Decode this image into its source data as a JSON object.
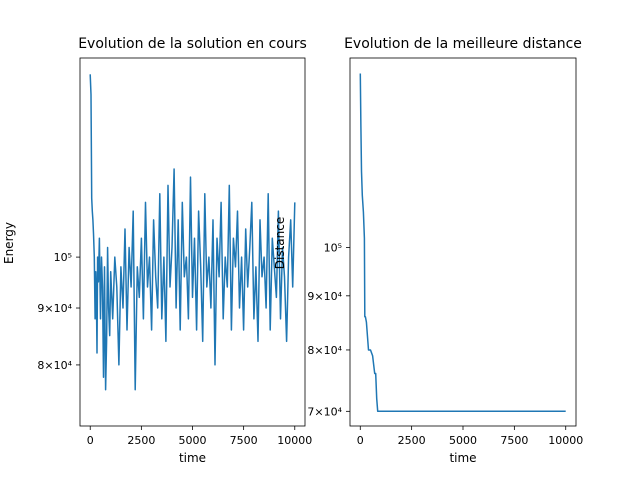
{
  "chart_data": [
    {
      "type": "line",
      "title": "Evolution de la solution en cours",
      "xlabel": "time",
      "ylabel": "Energy",
      "xlim": [
        -500,
        10500
      ],
      "ylim": [
        70500,
        151000
      ],
      "yscale": "log",
      "xticks": [
        0,
        2500,
        5000,
        7500,
        10000
      ],
      "xtick_labels": [
        "0",
        "2500",
        "5000",
        "7500",
        "10000"
      ],
      "yticks": [
        80000,
        90000,
        100000
      ],
      "ytick_labels": [
        "8×10⁴",
        "9×10⁴",
        "10⁵"
      ],
      "color": "#1f77b4",
      "series": [
        {
          "x": [
            0,
            40,
            70,
            100,
            130,
            160,
            200,
            240,
            270,
            300,
            330,
            360,
            400,
            450,
            500,
            550,
            600,
            650,
            700,
            750,
            800,
            850,
            900,
            950,
            1000,
            1100,
            1200,
            1300,
            1400,
            1500,
            1600,
            1700,
            1800,
            1900,
            2000,
            2100,
            2200,
            2300,
            2400,
            2500,
            2600,
            2700,
            2800,
            2900,
            3000,
            3100,
            3200,
            3300,
            3400,
            3500,
            3600,
            3700,
            3800,
            3900,
            4000,
            4100,
            4200,
            4300,
            4400,
            4500,
            4600,
            4700,
            4800,
            4900,
            5000,
            5100,
            5200,
            5300,
            5400,
            5500,
            5600,
            5700,
            5800,
            5900,
            6000,
            6100,
            6200,
            6300,
            6400,
            6500,
            6600,
            6700,
            6800,
            6900,
            7000,
            7100,
            7200,
            7300,
            7400,
            7500,
            7600,
            7700,
            7800,
            7900,
            8000,
            8100,
            8200,
            8300,
            8400,
            8500,
            8600,
            8700,
            8800,
            8900,
            9000,
            9100,
            9200,
            9300,
            9400,
            9500,
            9600,
            9700,
            9800,
            9900,
            10000
          ],
          "values": [
            146000,
            140000,
            113000,
            110000,
            108000,
            105000,
            100000,
            88000,
            97000,
            92000,
            82000,
            100000,
            95000,
            104000,
            88000,
            100000,
            94000,
            78000,
            98000,
            76000,
            84000,
            102000,
            90000,
            85000,
            97000,
            88000,
            100000,
            94000,
            80000,
            98000,
            90000,
            106000,
            86000,
            102000,
            94000,
            110000,
            76000,
            98000,
            92000,
            104000,
            88000,
            112000,
            94000,
            100000,
            86000,
            108000,
            96000,
            90000,
            114000,
            88000,
            100000,
            84000,
            116000,
            94000,
            102000,
            120000,
            90000,
            108000,
            86000,
            112000,
            96000,
            100000,
            88000,
            118000,
            92000,
            104000,
            86000,
            110000,
            98000,
            84000,
            114000,
            94000,
            100000,
            90000,
            108000,
            80000,
            104000,
            96000,
            112000,
            88000,
            100000,
            94000,
            116000,
            86000,
            104000,
            98000,
            110000,
            90000,
            100000,
            86000,
            106000,
            94000,
            102000,
            112000,
            88000,
            98000,
            84000,
            108000,
            96000,
            100000,
            90000,
            114000,
            86000,
            104000,
            98000,
            92000,
            110000,
            88000,
            102000,
            96000,
            84000,
            100000,
            108000,
            94000,
            112000
          ]
        }
      ]
    },
    {
      "type": "line",
      "title": "Evolution de la meilleure distance",
      "xlabel": "time",
      "ylabel": "Distance",
      "xlim": [
        -500,
        10500
      ],
      "ylim": [
        67800,
        151000
      ],
      "yscale": "log",
      "xticks": [
        0,
        2500,
        5000,
        7500,
        10000
      ],
      "xtick_labels": [
        "0",
        "2500",
        "5000",
        "7500",
        "10000"
      ],
      "yticks": [
        70000,
        80000,
        90000,
        100000
      ],
      "ytick_labels": [
        "7×10⁴",
        "8×10⁴",
        "9×10⁴",
        "10⁵"
      ],
      "color": "#1f77b4",
      "series": [
        {
          "x": [
            0,
            30,
            60,
            100,
            150,
            200,
            220,
            250,
            300,
            400,
            450,
            500,
            600,
            700,
            750,
            800,
            850,
            1000,
            2000,
            5000,
            10000
          ],
          "values": [
            146000,
            130000,
            118000,
            112000,
            108000,
            102000,
            86000,
            86000,
            85000,
            80000,
            80000,
            80000,
            79000,
            76000,
            76000,
            72000,
            70000,
            70000,
            70000,
            70000,
            70000
          ]
        }
      ]
    }
  ]
}
